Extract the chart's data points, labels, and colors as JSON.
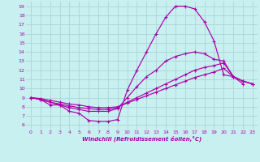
{
  "xlabel": "Windchill (Refroidissement éolien,°C)",
  "bg_color": "#c8f0f0",
  "grid_color": "#b0d8d8",
  "line_color": "#aa00aa",
  "xlim": [
    -0.5,
    23.5
  ],
  "ylim": [
    5.5,
    19.5
  ],
  "xticks": [
    0,
    1,
    2,
    3,
    4,
    5,
    6,
    7,
    8,
    9,
    10,
    11,
    12,
    13,
    14,
    15,
    16,
    17,
    18,
    19,
    20,
    21,
    22,
    23
  ],
  "yticks": [
    6,
    7,
    8,
    9,
    10,
    11,
    12,
    13,
    14,
    15,
    16,
    17,
    18,
    19
  ],
  "line1_x": [
    0,
    1,
    2,
    3,
    4,
    5,
    6,
    7,
    8,
    9,
    10,
    11,
    12,
    13,
    14,
    15,
    16,
    17,
    18,
    19,
    20,
    21,
    22
  ],
  "line1_y": [
    9.0,
    8.8,
    8.2,
    8.2,
    7.5,
    7.3,
    6.5,
    6.4,
    6.4,
    6.6,
    9.8,
    12.0,
    14.0,
    16.0,
    17.8,
    19.0,
    19.0,
    18.7,
    17.3,
    15.2,
    11.5,
    11.3,
    10.5
  ],
  "line2_x": [
    0,
    1,
    2,
    3,
    4,
    5,
    6,
    7,
    8,
    9,
    10,
    11,
    12,
    13,
    14,
    15,
    16,
    17,
    18,
    19,
    20,
    21,
    22,
    23
  ],
  "line2_y": [
    9.0,
    8.8,
    8.5,
    8.2,
    7.9,
    7.7,
    7.5,
    7.5,
    7.5,
    7.8,
    9.0,
    10.2,
    11.3,
    12.0,
    13.0,
    13.5,
    13.8,
    14.0,
    13.8,
    13.2,
    13.0,
    11.3,
    10.8,
    10.5
  ],
  "line3_x": [
    0,
    1,
    2,
    3,
    4,
    5,
    6,
    7,
    8,
    9,
    10,
    11,
    12,
    13,
    14,
    15,
    16,
    17,
    18,
    19,
    20,
    21,
    22,
    23
  ],
  "line3_y": [
    9.0,
    8.8,
    8.5,
    8.3,
    8.1,
    7.9,
    7.8,
    7.7,
    7.7,
    7.9,
    8.5,
    9.0,
    9.5,
    10.0,
    10.5,
    11.0,
    11.5,
    12.0,
    12.3,
    12.5,
    12.8,
    11.3,
    10.8,
    10.5
  ],
  "line4_x": [
    0,
    1,
    2,
    3,
    4,
    5,
    6,
    7,
    8,
    9,
    10,
    11,
    12,
    13,
    14,
    15,
    16,
    17,
    18,
    19,
    20,
    21,
    22,
    23
  ],
  "line4_y": [
    9.0,
    8.9,
    8.7,
    8.5,
    8.3,
    8.2,
    8.0,
    7.9,
    7.9,
    8.0,
    8.4,
    8.8,
    9.2,
    9.6,
    10.0,
    10.4,
    10.8,
    11.2,
    11.5,
    11.8,
    12.2,
    11.3,
    10.8,
    10.5
  ]
}
